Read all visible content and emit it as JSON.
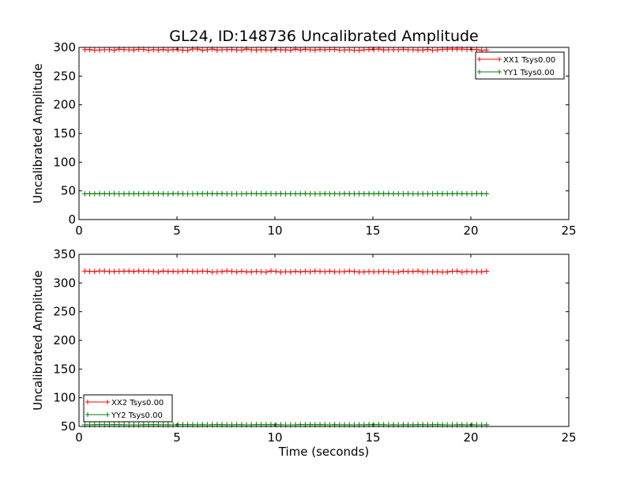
{
  "figure": {
    "title": "GL24, ID:148736 Uncalibrated Amplitude",
    "xlabel": "Time (seconds)"
  },
  "chart_data": [
    {
      "type": "line",
      "ylabel": "Uncalibrated Amplitude",
      "xlim": [
        0,
        25
      ],
      "ylim": [
        0,
        300
      ],
      "xticks": [
        0,
        5,
        10,
        15,
        20,
        25
      ],
      "yticks": [
        0,
        50,
        100,
        150,
        200,
        250,
        300
      ],
      "grid": false,
      "legend_position": "top-right",
      "x_start": 0.3,
      "x_end": 20.8,
      "series": [
        {
          "name": "XX1 Tsys0.00",
          "color": "#ff0000",
          "marker": "+",
          "y_mean": 296,
          "y_jitter": 1.2,
          "n_points": 83
        },
        {
          "name": "YY1 Tsys0.00",
          "color": "#008000",
          "marker": "+",
          "y_mean": 45,
          "y_jitter": 0.3,
          "n_points": 83
        }
      ]
    },
    {
      "type": "line",
      "ylabel": "Uncalibrated Amplitude",
      "xlim": [
        0,
        25
      ],
      "ylim": [
        50,
        350
      ],
      "xticks": [
        0,
        5,
        10,
        15,
        20,
        25
      ],
      "yticks": [
        50,
        100,
        150,
        200,
        250,
        300,
        350
      ],
      "grid": false,
      "legend_position": "bottom-left",
      "x_start": 0.3,
      "x_end": 20.8,
      "series": [
        {
          "name": "XX2 Tsys0.00",
          "color": "#ff0000",
          "marker": "+",
          "y_mean": 320,
          "y_jitter": 1.0,
          "n_points": 83
        },
        {
          "name": "YY2 Tsys0.00",
          "color": "#008000",
          "marker": "+",
          "y_mean": 53,
          "y_jitter": 0.3,
          "n_points": 83
        }
      ]
    }
  ]
}
